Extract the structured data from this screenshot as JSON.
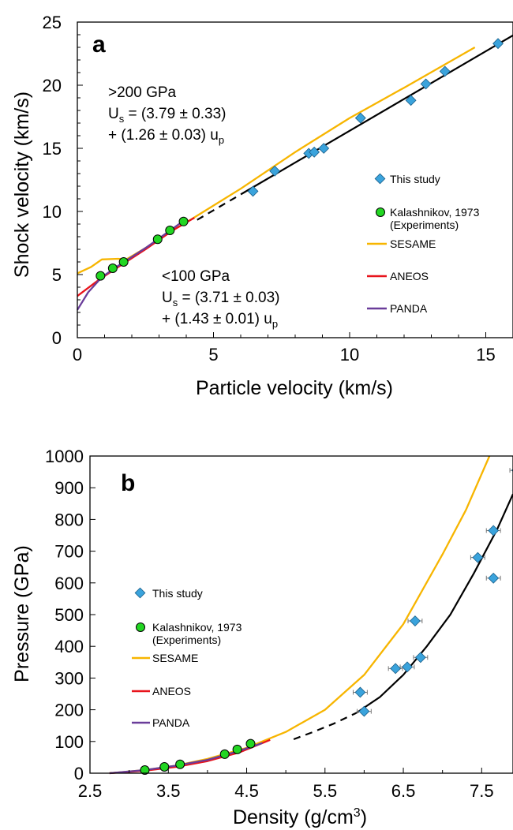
{
  "chart_data": [
    {
      "type": "scatter",
      "panel_label": "a",
      "xlabel": "Particle velocity (km/s)",
      "ylabel": "Shock velocity (km/s)",
      "xlim": [
        0,
        16
      ],
      "ylim": [
        0,
        25
      ],
      "x_ticks": [
        "0",
        "5",
        "10",
        "15"
      ],
      "y_ticks": [
        "0",
        "5",
        "10",
        "15",
        "20",
        "25"
      ],
      "legend_position": "right",
      "annotations": {
        "high_header": ">200 GPa",
        "high_line1_prefix": "U",
        "high_line1_sub": "s",
        "high_line1_rest": " = (3.79 ± 0.33)",
        "high_line2_prefix": "+ (1.26 ± 0.03) u",
        "high_line2_sub": "p",
        "low_header": "<100 GPa",
        "low_line1_prefix": "U",
        "low_line1_sub": "s",
        "low_line1_rest": " = (3.71 ± 0.03)",
        "low_line2_prefix": "+ (1.43 ± 0.01) u",
        "low_line2_sub": "p"
      },
      "legend": {
        "this_study": "This study",
        "kalashnikov_line1": "Kalashnikov, 1973",
        "kalashnikov_line2": "(Experiments)",
        "sesame": "SESAME",
        "aneos": "ANEOS",
        "panda": "PANDA"
      },
      "colors": {
        "this_study": "#3aa3dc",
        "kalashnikov": "#22d622",
        "sesame": "#f7b500",
        "aneos": "#e8141c",
        "panda": "#6a3d9a",
        "fit": "#000000"
      },
      "series": [
        {
          "name": "This study",
          "kind": "diamond",
          "points": [
            [
              6.45,
              11.6
            ],
            [
              7.25,
              13.2
            ],
            [
              8.5,
              14.6
            ],
            [
              8.7,
              14.7
            ],
            [
              9.05,
              15.0
            ],
            [
              10.4,
              17.4
            ],
            [
              12.25,
              18.8
            ],
            [
              12.8,
              20.1
            ],
            [
              13.5,
              21.1
            ],
            [
              15.45,
              23.3
            ]
          ]
        },
        {
          "name": "Kalashnikov, 1973 (Experiments)",
          "kind": "circle",
          "points": [
            [
              0.85,
              4.9
            ],
            [
              1.3,
              5.5
            ],
            [
              1.7,
              6.0
            ],
            [
              2.95,
              7.8
            ],
            [
              3.4,
              8.5
            ],
            [
              3.9,
              9.2
            ]
          ]
        },
        {
          "name": "SESAME",
          "kind": "line",
          "points": [
            [
              0,
              5.1
            ],
            [
              0.5,
              5.6
            ],
            [
              0.9,
              6.2
            ],
            [
              1.5,
              6.25
            ],
            [
              1.8,
              6.2
            ],
            [
              2.5,
              7.1
            ],
            [
              3.5,
              8.5
            ],
            [
              4.2,
              9.4
            ],
            [
              6.0,
              11.8
            ],
            [
              8.0,
              14.7
            ],
            [
              10.0,
              17.4
            ],
            [
              12.0,
              19.8
            ],
            [
              14.6,
              23.0
            ]
          ]
        },
        {
          "name": "ANEOS",
          "kind": "line",
          "points": [
            [
              0,
              3.3
            ],
            [
              0.8,
              4.6
            ],
            [
              1.5,
              5.6
            ],
            [
              2.5,
              7.0
            ],
            [
              3.5,
              8.5
            ],
            [
              4.3,
              9.5
            ]
          ]
        },
        {
          "name": "PANDA",
          "kind": "line",
          "points": [
            [
              0,
              2.2
            ],
            [
              0.4,
              3.6
            ],
            [
              0.9,
              4.8
            ],
            [
              1.5,
              5.7
            ],
            [
              2.5,
              7.1
            ],
            [
              3.8,
              9.1
            ]
          ]
        },
        {
          "name": "Fit >200 GPa",
          "kind": "fit",
          "intercept": 3.79,
          "slope": 1.26,
          "dashed_range": [
            4.4,
            6.2
          ],
          "solid_range": [
            6.2,
            16.0
          ]
        }
      ]
    },
    {
      "type": "scatter",
      "panel_label": "b",
      "xlabel_text": "Density (g/cm",
      "xlabel_sup": "3",
      "xlabel_close": ")",
      "ylabel": "Pressure (GPa)",
      "xlim": [
        2.5,
        7.9
      ],
      "ylim": [
        0,
        1000
      ],
      "x_ticks": [
        {
          "value": 2.5,
          "label": "2.5"
        },
        {
          "value": 3.5,
          "label": "3.5"
        },
        {
          "value": 4.5,
          "label": "4.5"
        },
        {
          "value": 5.5,
          "label": "5.5"
        },
        {
          "value": 6.5,
          "label": "6.5"
        },
        {
          "value": 7.5,
          "label": "7.5"
        }
      ],
      "y_ticks": [
        {
          "value": 0,
          "label": "0"
        },
        {
          "value": 100,
          "label": "100"
        },
        {
          "value": 200,
          "label": "200"
        },
        {
          "value": 300,
          "label": "300"
        },
        {
          "value": 400,
          "label": "400"
        },
        {
          "value": 500,
          "label": "500"
        },
        {
          "value": 600,
          "label": "600"
        },
        {
          "value": 700,
          "label": "700"
        },
        {
          "value": 800,
          "label": "800"
        },
        {
          "value": 900,
          "label": "900"
        },
        {
          "value": 1000,
          "label": "1000"
        }
      ],
      "legend_position": "left",
      "legend": {
        "this_study": "This study",
        "kalashnikov_line1": "Kalashnikov, 1973",
        "kalashnikov_line2": "(Experiments)",
        "sesame": "SESAME",
        "aneos": "ANEOS",
        "panda": "PANDA"
      },
      "series": [
        {
          "name": "This study",
          "kind": "diamond",
          "points": [
            [
              5.95,
              255
            ],
            [
              6.0,
              195
            ],
            [
              6.4,
              330
            ],
            [
              6.55,
              335
            ],
            [
              6.65,
              480
            ],
            [
              6.72,
              365
            ],
            [
              7.45,
              680
            ],
            [
              7.65,
              765
            ],
            [
              7.65,
              615
            ],
            [
              7.95,
              955
            ]
          ],
          "x_error": 0.09
        },
        {
          "name": "Kalashnikov, 1973 (Experiments)",
          "kind": "circle",
          "points": [
            [
              3.2,
              10
            ],
            [
              3.45,
              20
            ],
            [
              3.65,
              28
            ],
            [
              4.22,
              60
            ],
            [
              4.38,
              75
            ],
            [
              4.55,
              93
            ]
          ]
        },
        {
          "name": "SESAME",
          "kind": "line",
          "points": [
            [
              2.75,
              0
            ],
            [
              3.2,
              10
            ],
            [
              3.6,
              24
            ],
            [
              4.0,
              45
            ],
            [
              4.5,
              80
            ],
            [
              5.0,
              130
            ],
            [
              5.5,
              200
            ],
            [
              6.0,
              310
            ],
            [
              6.5,
              470
            ],
            [
              7.0,
              690
            ],
            [
              7.3,
              830
            ],
            [
              7.6,
              1000
            ]
          ]
        },
        {
          "name": "ANEOS",
          "kind": "line",
          "points": [
            [
              2.75,
              0
            ],
            [
              3.2,
              8
            ],
            [
              3.6,
              20
            ],
            [
              4.0,
              38
            ],
            [
              4.4,
              65
            ],
            [
              4.8,
              105
            ]
          ]
        },
        {
          "name": "PANDA",
          "kind": "line",
          "points": [
            [
              2.75,
              0
            ],
            [
              3.2,
              10
            ],
            [
              3.6,
              24
            ],
            [
              4.0,
              42
            ],
            [
              4.4,
              70
            ],
            [
              4.7,
              95
            ]
          ]
        },
        {
          "name": "Fit",
          "kind": "fit",
          "dashed_points": [
            [
              5.1,
              107
            ],
            [
              5.35,
              130
            ],
            [
              5.6,
              155
            ],
            [
              5.9,
              190
            ]
          ],
          "solid_points": [
            [
              5.9,
              190
            ],
            [
              6.2,
              240
            ],
            [
              6.5,
              310
            ],
            [
              6.8,
              400
            ],
            [
              7.1,
              500
            ],
            [
              7.4,
              630
            ],
            [
              7.7,
              770
            ],
            [
              7.9,
              880
            ]
          ]
        }
      ]
    }
  ]
}
